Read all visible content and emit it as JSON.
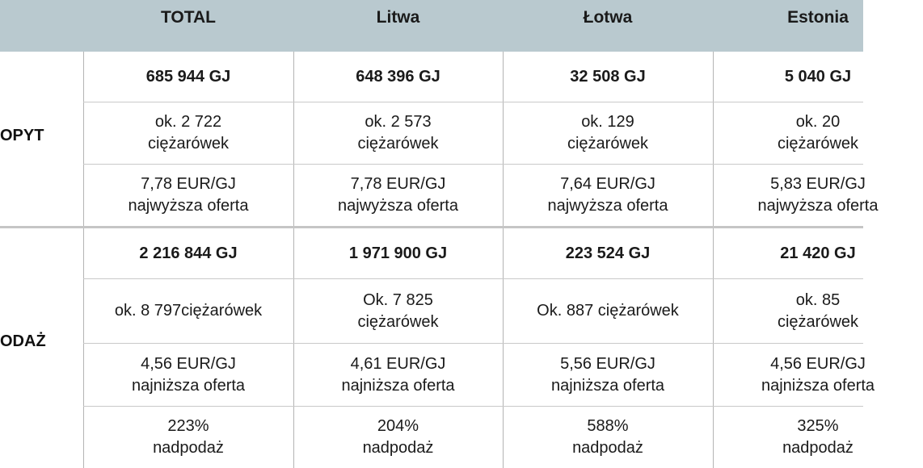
{
  "header": {
    "columns": [
      "TOTAL",
      "Litwa",
      "Łotwa",
      "Estonia"
    ]
  },
  "sections": [
    {
      "label": "OPYT",
      "rows": [
        [
          [
            "685 944 GJ"
          ],
          [
            "648 396 GJ"
          ],
          [
            "32 508 GJ"
          ],
          [
            "5 040 GJ"
          ]
        ],
        [
          [
            "ok. 2 722",
            "ciężarówek"
          ],
          [
            "ok. 2 573",
            "ciężarówek"
          ],
          [
            "ok. 129",
            "ciężarówek"
          ],
          [
            "ok. 20",
            "ciężarówek"
          ]
        ],
        [
          [
            "7,78 EUR/GJ",
            "najwyższa oferta"
          ],
          [
            "7,78 EUR/GJ",
            "najwyższa oferta"
          ],
          [
            "7,64 EUR/GJ",
            "najwyższa oferta"
          ],
          [
            "5,83 EUR/GJ",
            "najwyższa oferta"
          ]
        ]
      ]
    },
    {
      "label": "ODAŻ",
      "rows": [
        [
          [
            "2 216 844 GJ"
          ],
          [
            "1 971 900 GJ"
          ],
          [
            "223 524 GJ"
          ],
          [
            "21 420 GJ"
          ]
        ],
        [
          [
            "ok. 8 797ciężarówek"
          ],
          [
            "Ok. 7 825",
            "ciężarówek"
          ],
          [
            "Ok. 887 ciężarówek"
          ],
          [
            "ok. 85",
            "ciężarówek"
          ]
        ],
        [
          [
            "4,56 EUR/GJ",
            "najniższa oferta"
          ],
          [
            "4,61 EUR/GJ",
            "najniższa oferta"
          ],
          [
            "5,56 EUR/GJ",
            "najniższa oferta"
          ],
          [
            "4,56 EUR/GJ",
            "najniższa oferta"
          ]
        ],
        [
          [
            "223%",
            "nadpodaż"
          ],
          [
            "204%",
            "nadpodaż"
          ],
          [
            "588%",
            "nadpodaż"
          ],
          [
            "325%",
            "nadpodaż"
          ]
        ]
      ]
    }
  ]
}
